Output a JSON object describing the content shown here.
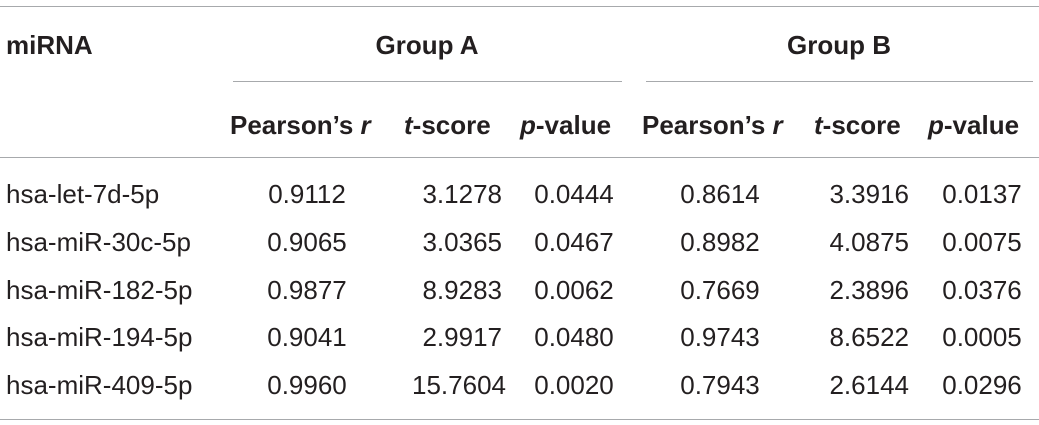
{
  "table": {
    "row_header_label": "miRNA",
    "groups": [
      {
        "label": "Group A"
      },
      {
        "label": "Group B"
      }
    ],
    "subheaders": {
      "pearson_main": "Pearson’s ",
      "pearson_var": "r",
      "t_var": "t",
      "t_main": "-score",
      "p_var": "p",
      "p_main": "-value"
    },
    "rows": [
      {
        "mirna": "hsa-let-7d-5p",
        "a_r": "0.9112",
        "a_t": "3.1278",
        "a_p": "0.0444",
        "b_r": "0.8614",
        "b_t": "3.3916",
        "b_p": "0.0137"
      },
      {
        "mirna": "hsa-miR-30c-5p",
        "a_r": "0.9065",
        "a_t": "3.0365",
        "a_p": "0.0467",
        "b_r": "0.8982",
        "b_t": "4.0875",
        "b_p": "0.0075"
      },
      {
        "mirna": "hsa-miR-182-5p",
        "a_r": "0.9877",
        "a_t": "8.9283",
        "a_p": "0.0062",
        "b_r": "0.7669",
        "b_t": "2.3896",
        "b_p": "0.0376"
      },
      {
        "mirna": "hsa-miR-194-5p",
        "a_r": "0.9041",
        "a_t": "2.9917",
        "a_p": "0.0480",
        "b_r": "0.9743",
        "b_t": "8.6522",
        "b_p": "0.0005"
      },
      {
        "mirna": "hsa-miR-409-5p",
        "a_r": "0.9960",
        "a_t": "15.7604",
        "a_p": "0.0020",
        "b_r": "0.7943",
        "b_t": "2.6144",
        "b_p": "0.0296"
      }
    ]
  }
}
